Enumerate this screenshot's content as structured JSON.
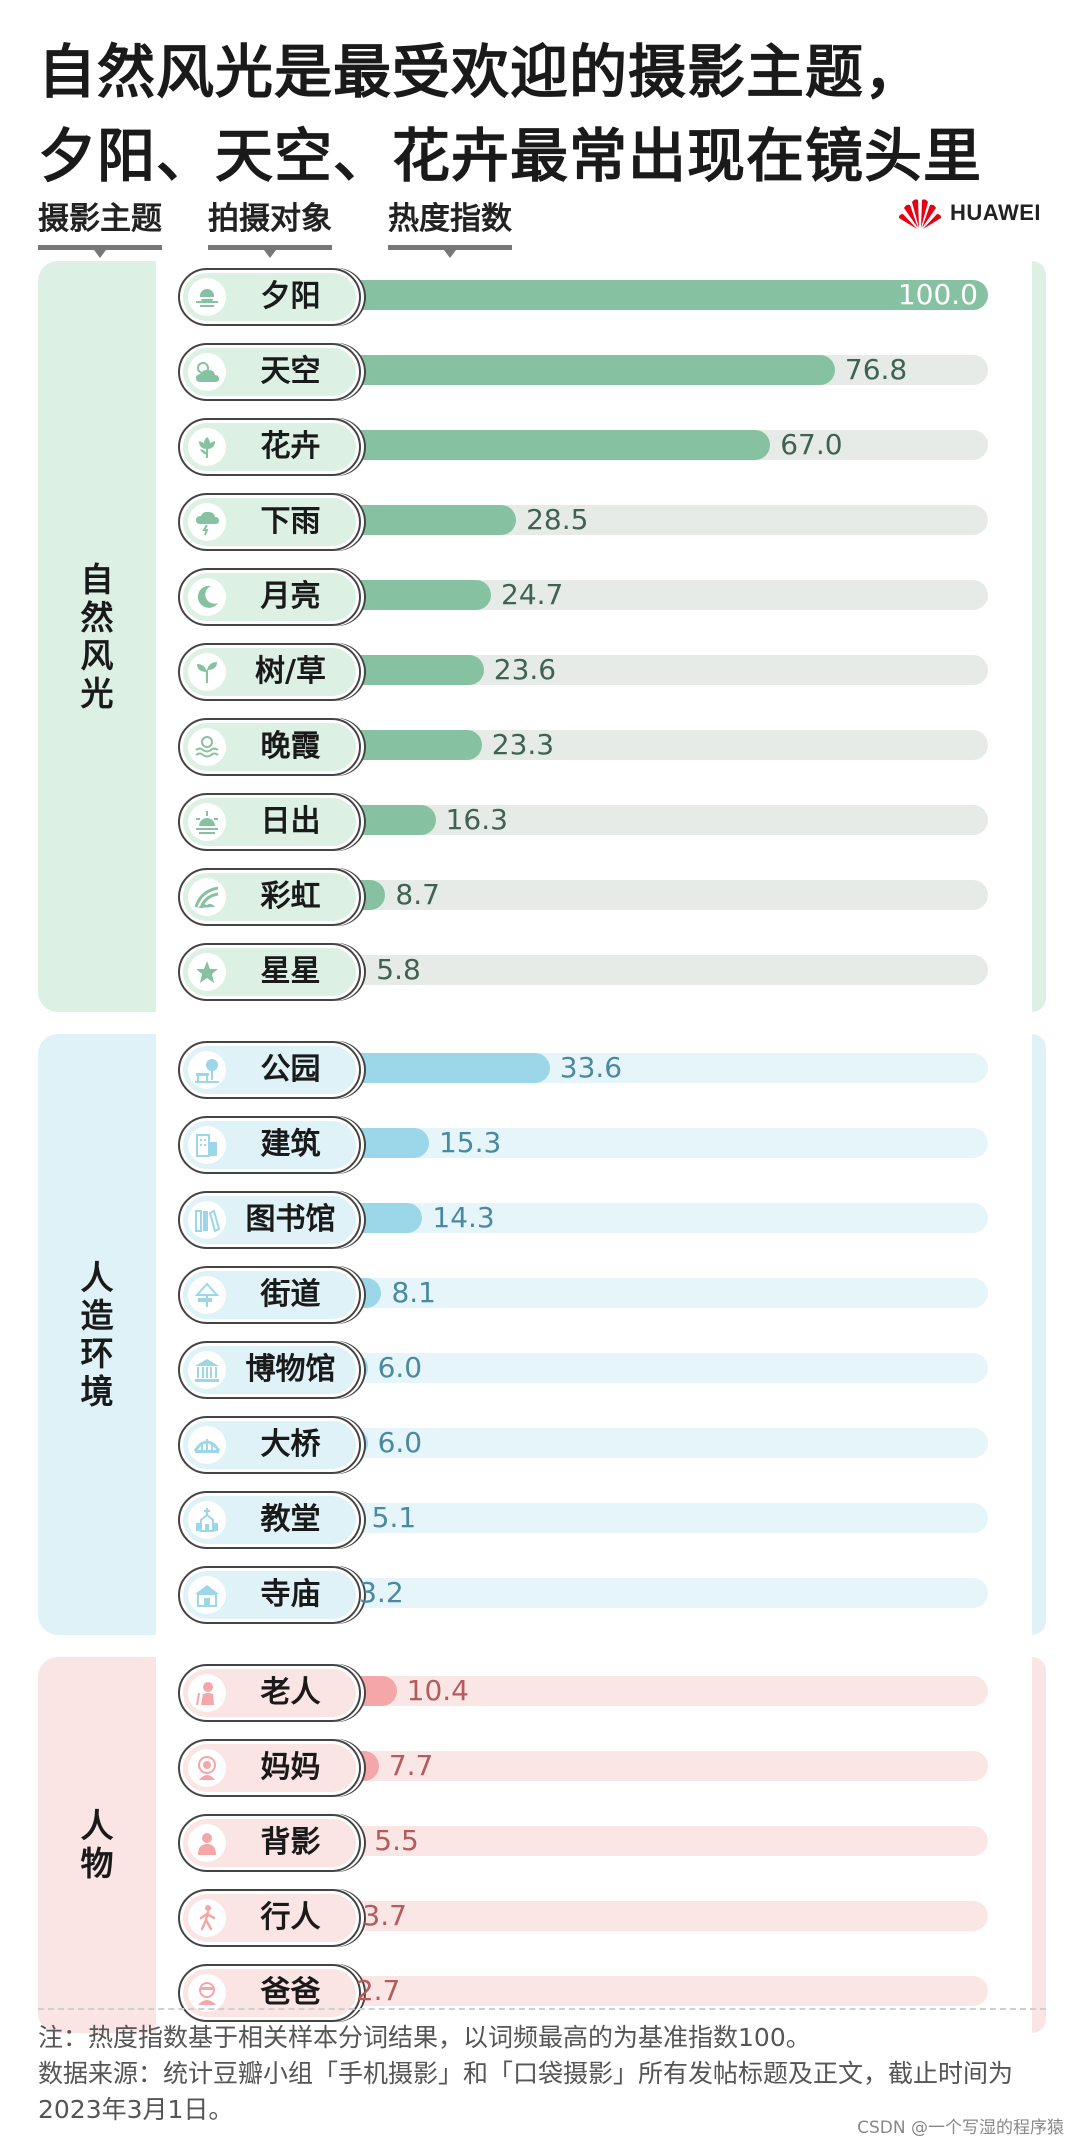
{
  "title_lines": [
    "自然风光是最受欢迎的摄影主题，",
    "夕阳、天空、花卉最常出现在镜头里"
  ],
  "column_headers": [
    "摄影主题",
    "拍摄对象",
    "热度指数"
  ],
  "brand": {
    "name": "HUAWEI",
    "logo_color": "#e60012"
  },
  "chart_data": {
    "type": "bar",
    "orientation": "horizontal",
    "xlim": [
      0,
      100
    ],
    "groups": [
      {
        "name": "自然风光",
        "bar_color": "#86c2a1",
        "track_color": "#e6ebe8",
        "panel_color": "#dcf0e4",
        "value_color": "#3f6350",
        "items": [
          {
            "label": "夕阳",
            "value": 100.0,
            "display": "100.0",
            "icon": "sunset-icon"
          },
          {
            "label": "天空",
            "value": 76.8,
            "display": "76.8",
            "icon": "cloud-sun-icon"
          },
          {
            "label": "花卉",
            "value": 67.0,
            "display": "67.0",
            "icon": "flower-icon"
          },
          {
            "label": "下雨",
            "value": 28.5,
            "display": "28.5",
            "icon": "rain-cloud-icon"
          },
          {
            "label": "月亮",
            "value": 24.7,
            "display": "24.7",
            "icon": "moon-icon"
          },
          {
            "label": "树/草",
            "value": 23.6,
            "display": "23.6",
            "icon": "sprout-icon"
          },
          {
            "label": "晚霞",
            "value": 23.3,
            "display": "23.3",
            "icon": "waves-icon"
          },
          {
            "label": "日出",
            "value": 16.3,
            "display": "16.3",
            "icon": "sunrise-icon"
          },
          {
            "label": "彩虹",
            "value": 8.7,
            "display": "8.7",
            "icon": "rainbow-icon"
          },
          {
            "label": "星星",
            "value": 5.8,
            "display": "5.8",
            "icon": "star-icon"
          }
        ]
      },
      {
        "name": "人造环境",
        "bar_color": "#9bd7e8",
        "track_color": "#e6f5f9",
        "panel_color": "#dff2f8",
        "value_color": "#4a8aa0",
        "items": [
          {
            "label": "公园",
            "value": 33.6,
            "display": "33.6",
            "icon": "park-icon"
          },
          {
            "label": "建筑",
            "value": 15.3,
            "display": "15.3",
            "icon": "building-icon"
          },
          {
            "label": "图书馆",
            "value": 14.3,
            "display": "14.3",
            "icon": "books-icon"
          },
          {
            "label": "街道",
            "value": 8.1,
            "display": "8.1",
            "icon": "street-sign-icon"
          },
          {
            "label": "博物馆",
            "value": 6.0,
            "display": "6.0",
            "icon": "museum-icon"
          },
          {
            "label": "大桥",
            "value": 6.0,
            "display": "6.0",
            "icon": "bridge-icon"
          },
          {
            "label": "教堂",
            "value": 5.1,
            "display": "5.1",
            "icon": "church-icon"
          },
          {
            "label": "寺庙",
            "value": 3.2,
            "display": "3.2",
            "icon": "temple-icon"
          }
        ]
      },
      {
        "name": "人物",
        "bar_color": "#f5a6a8",
        "track_color": "#fbe6e6",
        "panel_color": "#fbe4e4",
        "value_color": "#b55a5d",
        "items": [
          {
            "label": "老人",
            "value": 10.4,
            "display": "10.4",
            "icon": "elder-icon"
          },
          {
            "label": "妈妈",
            "value": 7.7,
            "display": "7.7",
            "icon": "mother-icon"
          },
          {
            "label": "背影",
            "value": 5.5,
            "display": "5.5",
            "icon": "person-back-icon"
          },
          {
            "label": "行人",
            "value": 3.7,
            "display": "3.7",
            "icon": "pedestrian-icon"
          },
          {
            "label": "爸爸",
            "value": 2.7,
            "display": "2.7",
            "icon": "father-icon"
          }
        ]
      }
    ]
  },
  "notes": [
    "注：热度指数基于相关样本分词结果，以词频最高的为基准指数100。",
    "数据来源：统计豆瓣小组「手机摄影」和「口袋摄影」所有发帖标题及正文，截止时间为2023年3月1日。"
  ],
  "credit": "CSDN @一个写湿的程序猿"
}
